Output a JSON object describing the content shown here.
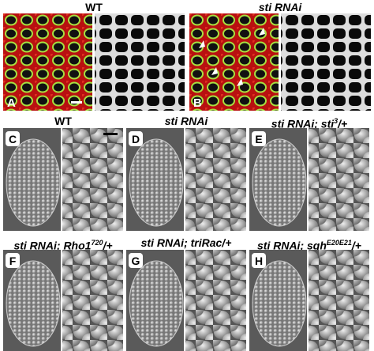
{
  "top_panels": [
    {
      "letter": "A",
      "title": {
        "text": "WT",
        "italic": false
      }
    },
    {
      "letter": "B",
      "title": {
        "text": "sti RNAi",
        "italic": true
      }
    }
  ],
  "sem_panels": [
    {
      "letter": "C",
      "title": {
        "text": "WT",
        "italic": false
      }
    },
    {
      "letter": "D",
      "title": {
        "text": "sti RNAi",
        "italic": true
      }
    },
    {
      "letter": "E",
      "title": {
        "text": "sti RNAi; sti",
        "sup": "3",
        "after": "/+",
        "italic": true
      }
    },
    {
      "letter": "F",
      "title": {
        "text": "sti RNAi; Rho1",
        "sup": "720",
        "after": "/+",
        "italic": true
      }
    },
    {
      "letter": "G",
      "title": {
        "text": "sti RNAi; triRac/+",
        "italic": true
      }
    },
    {
      "letter": "H",
      "title": {
        "text": "sti RNAi; sqh",
        "sup": "E20E21",
        "after": "/+",
        "italic": true
      }
    }
  ]
}
